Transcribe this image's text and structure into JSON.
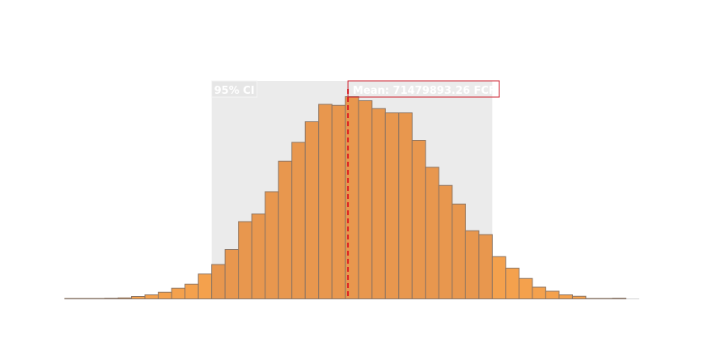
{
  "chart_data": {
    "type": "bar",
    "subtype": "histogram",
    "x_range": [
      0,
      43
    ],
    "ylim": [
      0,
      1.0
    ],
    "values": [
      0.002,
      0.002,
      0.002,
      0.003,
      0.005,
      0.012,
      0.02,
      0.033,
      0.053,
      0.073,
      0.123,
      0.17,
      0.244,
      0.382,
      0.42,
      0.53,
      0.681,
      0.774,
      0.876,
      0.962,
      0.957,
      1.0,
      0.98,
      0.941,
      0.92,
      0.92,
      0.784,
      0.651,
      0.561,
      0.469,
      0.337,
      0.318,
      0.209,
      0.152,
      0.101,
      0.058,
      0.038,
      0.02,
      0.013,
      0.002,
      0.002,
      0.003,
      0.0
    ],
    "ci_interval": [
      11,
      32
    ],
    "mean_position": 21.2,
    "ci_label": "95% CI",
    "mean_label": "Mean: 71479893.26 FCFA",
    "colors": {
      "bar_in_ci": "#E8974E",
      "bar_out_ci": "#F4A14D",
      "bar_stroke": "#8C7462",
      "ci_band": "#EBEBEB",
      "mean_line": "#E02020",
      "mean_label_border": "#CC1F2E",
      "baseline": "#7F7F7F"
    },
    "grid": false,
    "legend": "none"
  }
}
